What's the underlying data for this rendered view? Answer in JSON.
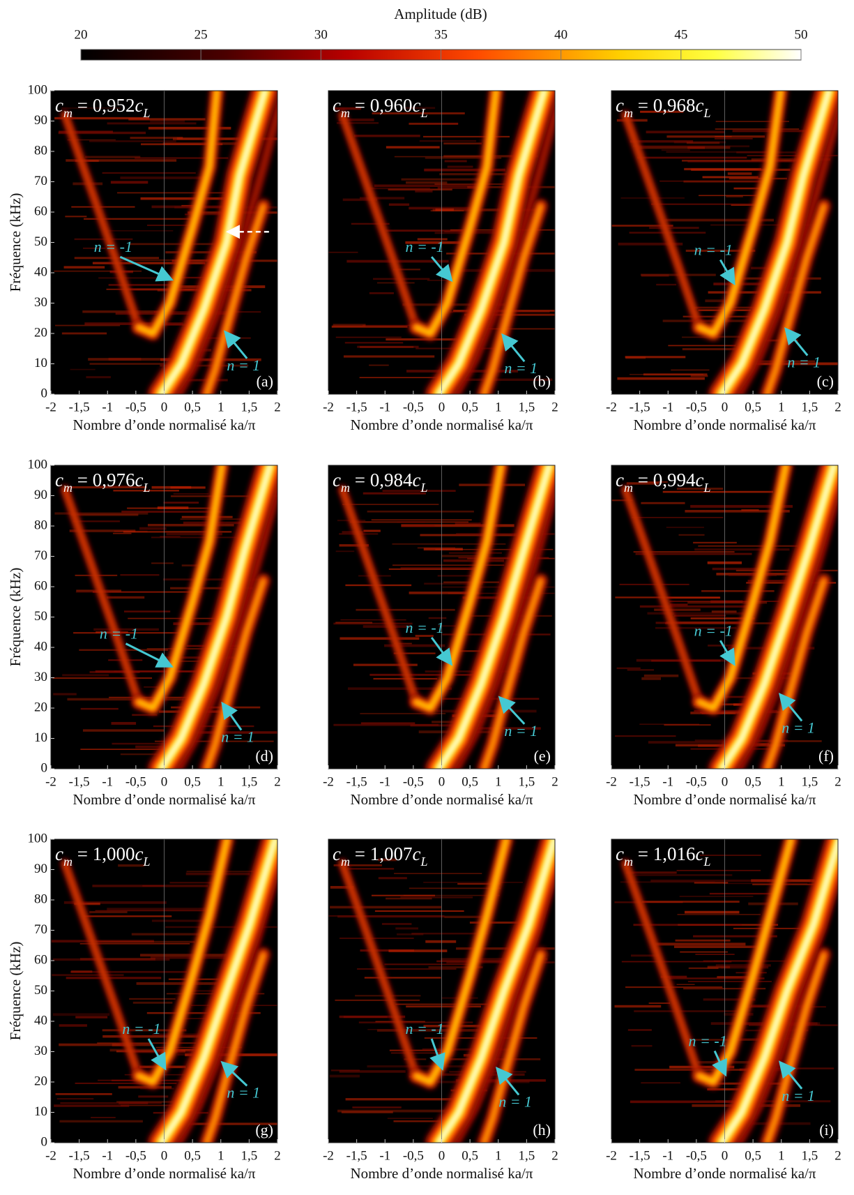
{
  "colorbar": {
    "label": "Amplitude (dB)",
    "lim": [
      20,
      50
    ],
    "ticks": [
      20,
      25,
      30,
      35,
      40,
      45,
      50
    ]
  },
  "chart_data": [
    {
      "type": "heatmap",
      "title_parts": [
        "c",
        "m",
        " = 0,952",
        "c",
        "L"
      ],
      "panel_label": "(a)",
      "xlabel": "Nombre d’onde normalisé ka/π",
      "ylabel": "Fréquence (kHz)",
      "xlim": [
        -2,
        2
      ],
      "ylim": [
        0,
        100
      ],
      "xticks": [
        -2,
        {
          "value": -1.5,
          "label": "-1,5"
        },
        -1,
        {
          "value": -0.5,
          "label": "-0,5"
        },
        0,
        {
          "value": 0.5,
          "label": "0,5"
        },
        1,
        {
          "value": 1.5,
          "label": "1,5"
        },
        2
      ],
      "yticks": [
        0,
        10,
        20,
        30,
        40,
        50,
        60,
        70,
        80,
        90,
        100
      ],
      "annotations": [
        "n = -1",
        "n = 1"
      ]
    },
    {
      "type": "heatmap",
      "title_parts": [
        "c",
        "m",
        " = 0,960",
        "c",
        "L"
      ],
      "panel_label": "(b)",
      "xlabel": "Nombre d’onde normalisé ka/π",
      "xlim": [
        -2,
        2
      ],
      "ylim": [
        0,
        100
      ],
      "xticks": [
        -2,
        {
          "value": -1.5,
          "label": "-1,5"
        },
        -1,
        {
          "value": -0.5,
          "label": "-0,5"
        },
        0,
        {
          "value": 0.5,
          "label": "0,5"
        },
        1,
        {
          "value": 1.5,
          "label": "1,5"
        },
        2
      ],
      "annotations": [
        "n = -1",
        "n = 1"
      ]
    },
    {
      "type": "heatmap",
      "title_parts": [
        "c",
        "m",
        " = 0,968",
        "c",
        "L"
      ],
      "panel_label": "(c)",
      "xlabel": "Nombre d’onde normalisé ka/π",
      "xlim": [
        -2,
        2
      ],
      "ylim": [
        0,
        100
      ],
      "xticks": [
        -2,
        {
          "value": -1.5,
          "label": "-1,5"
        },
        -1,
        {
          "value": -0.5,
          "label": "-0,5"
        },
        0,
        {
          "value": 0.5,
          "label": "0,5"
        },
        1,
        {
          "value": 1.5,
          "label": "1,5"
        },
        2
      ],
      "annotations": [
        "n = -1",
        "n = 1"
      ]
    },
    {
      "type": "heatmap",
      "title_parts": [
        "c",
        "m",
        " = 0,976",
        "c",
        "L"
      ],
      "panel_label": "(d)",
      "xlabel": "Nombre d’onde normalisé ka/π",
      "ylabel": "Fréquence (kHz)",
      "xlim": [
        -2,
        2
      ],
      "ylim": [
        0,
        100
      ],
      "xticks": [
        -2,
        {
          "value": -1.5,
          "label": "-1,5"
        },
        -1,
        {
          "value": -0.5,
          "label": "-0,5"
        },
        0,
        {
          "value": 0.5,
          "label": "0,5"
        },
        1,
        {
          "value": 1.5,
          "label": "1,5"
        },
        2
      ],
      "yticks": [
        0,
        10,
        20,
        30,
        40,
        50,
        60,
        70,
        80,
        90,
        100
      ],
      "annotations": [
        "n = -1",
        "n = 1"
      ]
    },
    {
      "type": "heatmap",
      "title_parts": [
        "c",
        "m",
        " = 0,984",
        "c",
        "L"
      ],
      "panel_label": "(e)",
      "xlabel": "Nombre d’onde normalisé ka/π",
      "xlim": [
        -2,
        2
      ],
      "ylim": [
        0,
        100
      ],
      "xticks": [
        -2,
        {
          "value": -1.5,
          "label": "-1,5"
        },
        -1,
        {
          "value": -0.5,
          "label": "-0,5"
        },
        0,
        {
          "value": 0.5,
          "label": "0,5"
        },
        1,
        {
          "value": 1.5,
          "label": "1,5"
        },
        2
      ],
      "annotations": [
        "n = -1",
        "n = 1"
      ]
    },
    {
      "type": "heatmap",
      "title_parts": [
        "c",
        "m",
        " = 0,994",
        "c",
        "L"
      ],
      "panel_label": "(f)",
      "xlabel": "Nombre d’onde normalisé ka/π",
      "xlim": [
        -2,
        2
      ],
      "ylim": [
        0,
        100
      ],
      "xticks": [
        -2,
        {
          "value": -1.5,
          "label": "-1,5"
        },
        -1,
        {
          "value": -0.5,
          "label": "-0,5"
        },
        0,
        {
          "value": 0.5,
          "label": "0,5"
        },
        1,
        {
          "value": 1.5,
          "label": "1,5"
        },
        2
      ],
      "annotations": [
        "n = -1",
        "n = 1"
      ]
    },
    {
      "type": "heatmap",
      "title_parts": [
        "c",
        "m",
        " = 1,000",
        "c",
        "L"
      ],
      "panel_label": "(g)",
      "xlabel": "Nombre d’onde normalisé ka/π",
      "ylabel": "Fréquence (kHz)",
      "xlim": [
        -2,
        2
      ],
      "ylim": [
        0,
        100
      ],
      "xticks": [
        -2,
        {
          "value": -1.5,
          "label": "-1,5"
        },
        -1,
        {
          "value": -0.5,
          "label": "-0,5"
        },
        0,
        {
          "value": 0.5,
          "label": "0,5"
        },
        1,
        {
          "value": 1.5,
          "label": "1,5"
        },
        2
      ],
      "yticks": [
        0,
        10,
        20,
        30,
        40,
        50,
        60,
        70,
        80,
        90,
        100
      ],
      "annotations": [
        "n = -1",
        "n = 1"
      ]
    },
    {
      "type": "heatmap",
      "title_parts": [
        "c",
        "m",
        " = 1,007",
        "c",
        "L"
      ],
      "panel_label": "(h)",
      "xlabel": "Nombre d’onde normalisé ka/π",
      "xlim": [
        -2,
        2
      ],
      "ylim": [
        0,
        100
      ],
      "xticks": [
        -2,
        {
          "value": -1.5,
          "label": "-1,5"
        },
        -1,
        {
          "value": -0.5,
          "label": "-0,5"
        },
        0,
        {
          "value": 0.5,
          "label": "0,5"
        },
        1,
        {
          "value": 1.5,
          "label": "1,5"
        },
        2
      ],
      "annotations": [
        "n = -1",
        "n = 1"
      ]
    },
    {
      "type": "heatmap",
      "title_parts": [
        "c",
        "m",
        " = 1,016",
        "c",
        "L"
      ],
      "panel_label": "(i)",
      "xlabel": "Nombre d’onde normalisé ka/π",
      "xlim": [
        -2,
        2
      ],
      "ylim": [
        0,
        100
      ],
      "xticks": [
        -2,
        {
          "value": -1.5,
          "label": "-1,5"
        },
        -1,
        {
          "value": -0.5,
          "label": "-0,5"
        },
        0,
        {
          "value": 0.5,
          "label": "0,5"
        },
        1,
        {
          "value": 1.5,
          "label": "1,5"
        },
        2
      ],
      "annotations": [
        "n = -1",
        "n = 1"
      ]
    }
  ]
}
